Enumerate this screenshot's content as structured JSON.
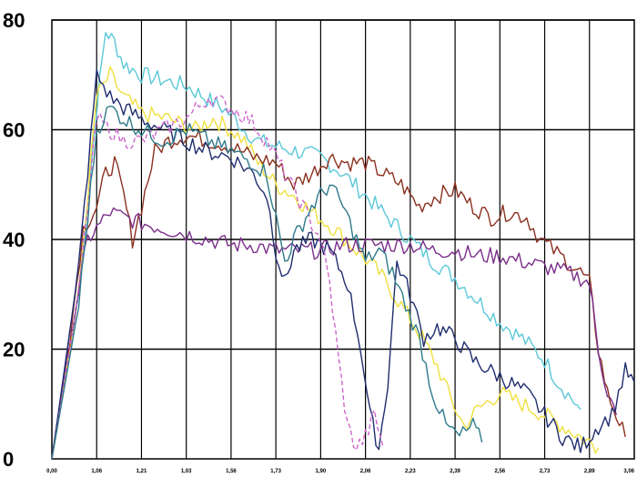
{
  "chart_data": {
    "type": "line",
    "title": "",
    "xlabel": "",
    "ylabel": "",
    "ylim": [
      0,
      80
    ],
    "yticks": [
      0,
      20,
      40,
      60,
      80
    ],
    "xlim": [
      0,
      13
    ],
    "xtick_labels": [
      "0,00",
      "1,06",
      "1,21",
      "1,03",
      "1,56",
      "1,73",
      "1,90",
      "2,06",
      "2,23",
      "2,39",
      "2,56",
      "2,73",
      "2,89",
      "3,06"
    ],
    "grid": true,
    "legend": "none",
    "series": [
      {
        "color": "#5bc8d8",
        "points": [
          [
            0,
            0
          ],
          [
            0.6,
            30
          ],
          [
            1.0,
            64
          ],
          [
            1.2,
            78
          ],
          [
            1.4,
            76
          ],
          [
            1.6,
            72
          ],
          [
            2.0,
            70
          ],
          [
            2.5,
            69
          ],
          [
            3.0,
            68
          ],
          [
            3.4,
            66
          ],
          [
            3.8,
            64
          ],
          [
            4.1,
            62
          ],
          [
            4.3,
            60
          ],
          [
            4.6,
            58
          ],
          [
            5.0,
            57
          ],
          [
            5.5,
            56
          ],
          [
            6.0,
            55
          ],
          [
            6.5,
            52
          ],
          [
            7.0,
            48
          ],
          [
            7.5,
            44
          ],
          [
            8.0,
            40
          ],
          [
            8.5,
            36
          ],
          [
            9.0,
            33
          ],
          [
            9.5,
            29
          ],
          [
            10.0,
            25
          ],
          [
            10.5,
            22
          ],
          [
            11.0,
            18
          ],
          [
            11.3,
            14
          ],
          [
            11.6,
            11
          ],
          [
            11.8,
            9
          ]
        ]
      },
      {
        "color": "#f0e040",
        "points": [
          [
            0,
            0
          ],
          [
            0.6,
            30
          ],
          [
            1.0,
            66
          ],
          [
            1.3,
            70
          ],
          [
            1.6,
            66
          ],
          [
            2.0,
            63
          ],
          [
            2.6,
            62
          ],
          [
            3.2,
            60
          ],
          [
            3.6,
            62
          ],
          [
            4.0,
            60
          ],
          [
            4.3,
            58
          ],
          [
            4.6,
            54
          ],
          [
            5.0,
            50
          ],
          [
            5.4,
            48
          ],
          [
            5.8,
            45
          ],
          [
            6.3,
            42
          ],
          [
            6.8,
            38
          ],
          [
            7.3,
            34
          ],
          [
            7.8,
            28
          ],
          [
            8.2,
            23
          ],
          [
            8.6,
            17
          ],
          [
            8.9,
            11
          ],
          [
            9.2,
            6
          ],
          [
            9.5,
            9
          ],
          [
            10.0,
            12
          ],
          [
            10.5,
            10
          ],
          [
            11.0,
            8
          ],
          [
            11.4,
            6
          ],
          [
            11.8,
            4
          ],
          [
            12.2,
            2
          ]
        ]
      },
      {
        "color": "#8b3020",
        "points": [
          [
            0,
            0
          ],
          [
            0.4,
            22
          ],
          [
            0.7,
            42
          ],
          [
            1.0,
            46
          ],
          [
            1.2,
            52
          ],
          [
            1.4,
            54
          ],
          [
            1.6,
            48
          ],
          [
            1.8,
            40
          ],
          [
            2.0,
            46
          ],
          [
            2.3,
            56
          ],
          [
            2.6,
            58
          ],
          [
            3.0,
            59
          ],
          [
            3.5,
            58
          ],
          [
            4.0,
            57
          ],
          [
            4.5,
            55
          ],
          [
            5.0,
            54
          ],
          [
            5.4,
            50
          ],
          [
            5.8,
            52
          ],
          [
            6.2,
            55
          ],
          [
            6.6,
            54
          ],
          [
            7.0,
            54
          ],
          [
            7.4,
            52
          ],
          [
            7.8,
            50
          ],
          [
            8.2,
            46
          ],
          [
            8.6,
            48
          ],
          [
            9.0,
            49
          ],
          [
            9.4,
            46
          ],
          [
            9.8,
            44
          ],
          [
            10.2,
            45
          ],
          [
            10.6,
            44
          ],
          [
            10.9,
            40
          ],
          [
            11.2,
            38
          ],
          [
            11.5,
            36
          ],
          [
            11.8,
            34
          ],
          [
            12.0,
            32
          ],
          [
            12.2,
            20
          ],
          [
            12.4,
            12
          ],
          [
            12.6,
            8
          ],
          [
            12.8,
            4
          ]
        ]
      },
      {
        "color": "#7a2e8a",
        "points": [
          [
            0,
            0
          ],
          [
            0.4,
            22
          ],
          [
            0.8,
            40
          ],
          [
            1.0,
            42
          ],
          [
            1.3,
            45
          ],
          [
            1.6,
            44
          ],
          [
            2.0,
            43
          ],
          [
            2.5,
            42
          ],
          [
            3.0,
            41
          ],
          [
            3.5,
            40
          ],
          [
            4.0,
            39
          ],
          [
            4.5,
            39
          ],
          [
            5.0,
            38
          ],
          [
            5.5,
            38
          ],
          [
            6.0,
            38
          ],
          [
            6.5,
            39
          ],
          [
            7.0,
            39
          ],
          [
            7.5,
            39
          ],
          [
            8.0,
            39
          ],
          [
            8.5,
            38
          ],
          [
            9.0,
            38
          ],
          [
            9.5,
            37
          ],
          [
            10.0,
            37
          ],
          [
            10.5,
            36
          ],
          [
            11.0,
            35
          ],
          [
            11.5,
            34
          ],
          [
            11.8,
            33
          ],
          [
            12.0,
            32
          ],
          [
            12.2,
            20
          ],
          [
            12.4,
            12
          ],
          [
            12.6,
            8
          ]
        ]
      },
      {
        "color": "#1f2d6e",
        "points": [
          [
            0,
            0
          ],
          [
            0.6,
            35
          ],
          [
            1.0,
            70
          ],
          [
            1.3,
            66
          ],
          [
            1.6,
            64
          ],
          [
            2.0,
            62
          ],
          [
            2.5,
            60
          ],
          [
            3.0,
            58
          ],
          [
            3.5,
            56
          ],
          [
            4.0,
            55
          ],
          [
            4.5,
            52
          ],
          [
            4.8,
            48
          ],
          [
            5.0,
            38
          ],
          [
            5.2,
            32
          ],
          [
            5.4,
            38
          ],
          [
            5.8,
            40
          ],
          [
            6.2,
            38
          ],
          [
            6.6,
            32
          ],
          [
            6.9,
            20
          ],
          [
            7.1,
            8
          ],
          [
            7.3,
            2
          ],
          [
            7.5,
            14
          ],
          [
            7.7,
            36
          ],
          [
            8.0,
            30
          ],
          [
            8.3,
            22
          ],
          [
            8.6,
            24
          ],
          [
            9.0,
            22
          ],
          [
            9.4,
            18
          ],
          [
            9.8,
            16
          ],
          [
            10.2,
            14
          ],
          [
            10.6,
            12
          ],
          [
            11.0,
            8
          ],
          [
            11.4,
            4
          ],
          [
            11.8,
            2
          ],
          [
            12.2,
            6
          ],
          [
            12.5,
            8
          ],
          [
            12.8,
            16
          ],
          [
            13.0,
            14
          ]
        ]
      },
      {
        "color": "#cc66cc",
        "dash": true,
        "points": [
          [
            0,
            0
          ],
          [
            0.6,
            30
          ],
          [
            1.0,
            62
          ],
          [
            1.3,
            60
          ],
          [
            1.6,
            58
          ],
          [
            2.0,
            58
          ],
          [
            2.5,
            60
          ],
          [
            3.0,
            62
          ],
          [
            3.5,
            66
          ],
          [
            4.0,
            64
          ],
          [
            4.4,
            62
          ],
          [
            4.8,
            58
          ],
          [
            5.2,
            52
          ],
          [
            5.6,
            46
          ],
          [
            6.0,
            40
          ],
          [
            6.2,
            32
          ],
          [
            6.4,
            18
          ],
          [
            6.6,
            6
          ],
          [
            6.8,
            2
          ],
          [
            7.0,
            4
          ],
          [
            7.2,
            8
          ],
          [
            7.4,
            2
          ]
        ]
      },
      {
        "color": "#2e7a8a",
        "points": [
          [
            0,
            0
          ],
          [
            0.6,
            28
          ],
          [
            1.0,
            60
          ],
          [
            1.3,
            64
          ],
          [
            1.6,
            62
          ],
          [
            2.0,
            60
          ],
          [
            2.5,
            58
          ],
          [
            3.0,
            60
          ],
          [
            3.5,
            58
          ],
          [
            4.0,
            56
          ],
          [
            4.5,
            54
          ],
          [
            4.8,
            52
          ],
          [
            5.0,
            44
          ],
          [
            5.2,
            36
          ],
          [
            5.4,
            40
          ],
          [
            5.8,
            46
          ],
          [
            6.2,
            50
          ],
          [
            6.5,
            46
          ],
          [
            6.8,
            40
          ],
          [
            7.0,
            36
          ],
          [
            7.3,
            38
          ],
          [
            7.6,
            34
          ],
          [
            7.9,
            28
          ],
          [
            8.2,
            22
          ],
          [
            8.5,
            12
          ],
          [
            8.8,
            6
          ],
          [
            9.1,
            4
          ],
          [
            9.4,
            6
          ],
          [
            9.6,
            3
          ]
        ]
      }
    ]
  }
}
